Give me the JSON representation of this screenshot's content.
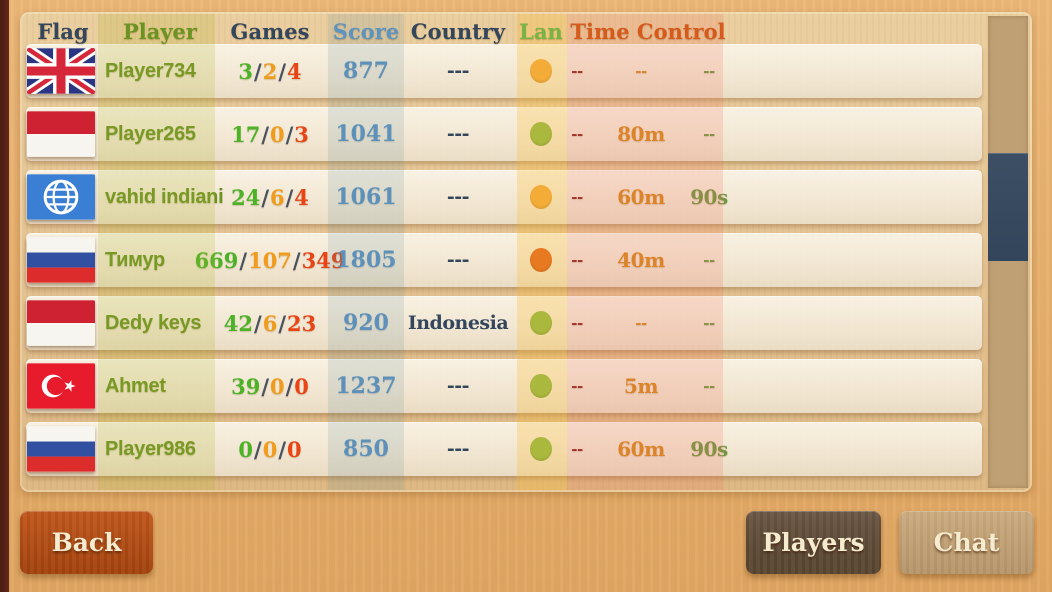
{
  "table": {
    "headers": [
      {
        "key": "flag",
        "label": "Flag",
        "color": "#33465b"
      },
      {
        "key": "player",
        "label": "Player",
        "color": "#6b9322"
      },
      {
        "key": "games",
        "label": "Games",
        "color": "#33465b"
      },
      {
        "key": "score",
        "label": "Score",
        "color": "#5e93c0"
      },
      {
        "key": "country",
        "label": "Country",
        "color": "#33465b"
      },
      {
        "key": "lan",
        "label": "Lan",
        "color": "#79b343"
      },
      {
        "key": "tc",
        "label": "Time Control",
        "color": "#d55a1c"
      }
    ],
    "rows": [
      {
        "flag": "uk-flag",
        "player": "Player734",
        "wins": "3",
        "draws": "2",
        "losses": "4",
        "slash": "/",
        "score": "877",
        "country": "---",
        "lan": "orange",
        "tc1": "--",
        "tc2": "--",
        "tc3": "--"
      },
      {
        "flag": "indonesia-flag",
        "player": "Player265",
        "wins": "17",
        "draws": "0",
        "losses": "3",
        "slash": "/",
        "score": "1041",
        "country": "---",
        "lan": "green",
        "tc1": "--",
        "tc2": "80m",
        "tc3": "--"
      },
      {
        "flag": "globe-icon",
        "player": "vahid indiani",
        "wins": "24",
        "draws": "6",
        "losses": "4",
        "slash": "/",
        "score": "1061",
        "country": "---",
        "lan": "orange",
        "tc1": "--",
        "tc2": "60m",
        "tc3": "90s"
      },
      {
        "flag": "russia-flag",
        "player": "Тимур",
        "wins": "669",
        "draws": "107",
        "losses": "349",
        "slash": "/",
        "score": "1805",
        "country": "---",
        "lan": "red",
        "tc1": "--",
        "tc2": "40m",
        "tc3": "--"
      },
      {
        "flag": "indonesia-flag",
        "player": "Dedy keys",
        "wins": "42",
        "draws": "6",
        "losses": "23",
        "slash": "/",
        "score": "920",
        "country": "Indonesia",
        "lan": "green",
        "tc1": "--",
        "tc2": "--",
        "tc3": "--"
      },
      {
        "flag": "turkey-flag",
        "player": "Ahmet",
        "wins": "39",
        "draws": "0",
        "losses": "0",
        "slash": "/",
        "score": "1237",
        "country": "---",
        "lan": "green",
        "tc1": "--",
        "tc2": "5m",
        "tc3": "--"
      },
      {
        "flag": "russia-flag",
        "player": "Player986",
        "wins": "0",
        "draws": "0",
        "losses": "0",
        "slash": "/",
        "score": "850",
        "country": "---",
        "lan": "green",
        "tc1": "--",
        "tc2": "60m",
        "tc3": "90s"
      }
    ]
  },
  "buttons": {
    "back": "Back",
    "players": "Players",
    "chat": "Chat"
  },
  "colors": {
    "lan": {
      "green": "#8bb944",
      "orange": "#f2a73d",
      "red": "#e0611c"
    },
    "wins": "#4cb327",
    "draws": "#f09c1d",
    "losses": "#e84414",
    "score": "#5e93c0",
    "time_initial": "#93261f",
    "time_main": "#d6891d",
    "time_increment": "#6d9840",
    "scroll_thumb": "#36495e",
    "back_button": "#b34c15",
    "players_button": "#63503d",
    "chat_button": "#c0a175"
  }
}
